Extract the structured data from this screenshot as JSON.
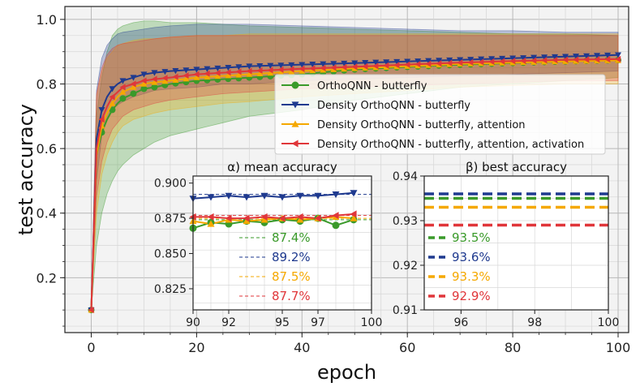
{
  "chart_data": [
    {
      "type": "line",
      "xlabel": "epoch",
      "ylabel": "test accuracy",
      "xlim": [
        -5,
        102
      ],
      "ylim": [
        0.03,
        1.04
      ],
      "x_ticks": [
        "0",
        "20",
        "40",
        "60",
        "80",
        "100"
      ],
      "y_ticks": [
        "0.2",
        "0.4",
        "0.6",
        "0.8",
        "1.0"
      ],
      "grid": true,
      "legend": "upper right",
      "series": [
        {
          "name": "OrthoQNN - butterfly",
          "color": "#3a9a2a",
          "marker": "circle",
          "x": [
            0,
            1,
            2,
            3,
            4,
            5,
            6,
            8,
            10,
            12,
            15,
            20,
            25,
            30,
            40,
            50,
            60,
            70,
            80,
            90,
            100
          ],
          "values": [
            0.1,
            0.58,
            0.65,
            0.69,
            0.72,
            0.74,
            0.755,
            0.77,
            0.785,
            0.79,
            0.8,
            0.81,
            0.815,
            0.82,
            0.83,
            0.845,
            0.853,
            0.86,
            0.865,
            0.87,
            0.874
          ],
          "band_lower": [
            0.1,
            0.3,
            0.4,
            0.46,
            0.5,
            0.53,
            0.55,
            0.58,
            0.6,
            0.62,
            0.64,
            0.66,
            0.68,
            0.7,
            0.72,
            0.75,
            0.77,
            0.79,
            0.8,
            0.81,
            0.82
          ],
          "band_upper": [
            0.1,
            0.7,
            0.82,
            0.9,
            0.95,
            0.97,
            0.98,
            0.99,
            0.995,
            0.995,
            0.99,
            0.99,
            0.985,
            0.98,
            0.975,
            0.97,
            0.965,
            0.96,
            0.955,
            0.955,
            0.95
          ]
        },
        {
          "name": "Density OrthoQNN - butterfly",
          "color": "#1f3a8f",
          "marker": "triangle-down",
          "x": [
            0,
            1,
            2,
            3,
            4,
            5,
            6,
            8,
            10,
            12,
            15,
            20,
            25,
            30,
            40,
            50,
            60,
            70,
            80,
            90,
            100
          ],
          "values": [
            0.1,
            0.63,
            0.72,
            0.76,
            0.785,
            0.8,
            0.81,
            0.82,
            0.83,
            0.835,
            0.84,
            0.845,
            0.85,
            0.855,
            0.86,
            0.865,
            0.87,
            0.875,
            0.88,
            0.885,
            0.89
          ],
          "band_lower": [
            0.1,
            0.5,
            0.64,
            0.69,
            0.72,
            0.735,
            0.745,
            0.76,
            0.77,
            0.78,
            0.785,
            0.79,
            0.8,
            0.8,
            0.81,
            0.815,
            0.82,
            0.825,
            0.83,
            0.835,
            0.84
          ],
          "band_upper": [
            0.1,
            0.78,
            0.88,
            0.92,
            0.94,
            0.955,
            0.96,
            0.965,
            0.97,
            0.975,
            0.98,
            0.985,
            0.985,
            0.985,
            0.98,
            0.975,
            0.97,
            0.965,
            0.965,
            0.96,
            0.96
          ]
        },
        {
          "name": "Density OrthoQNN - butterfly, attention",
          "color": "#f5a800",
          "marker": "triangle-up",
          "x": [
            0,
            1,
            2,
            3,
            4,
            5,
            6,
            8,
            10,
            12,
            15,
            20,
            25,
            30,
            40,
            50,
            60,
            70,
            80,
            90,
            100
          ],
          "values": [
            0.1,
            0.58,
            0.67,
            0.71,
            0.74,
            0.76,
            0.775,
            0.79,
            0.8,
            0.805,
            0.81,
            0.82,
            0.825,
            0.83,
            0.84,
            0.848,
            0.855,
            0.862,
            0.866,
            0.87,
            0.873
          ],
          "band_lower": [
            0.1,
            0.4,
            0.52,
            0.58,
            0.62,
            0.65,
            0.67,
            0.69,
            0.7,
            0.71,
            0.72,
            0.73,
            0.74,
            0.745,
            0.76,
            0.77,
            0.78,
            0.79,
            0.795,
            0.8,
            0.8
          ],
          "band_upper": [
            0.1,
            0.76,
            0.84,
            0.88,
            0.9,
            0.92,
            0.925,
            0.935,
            0.94,
            0.94,
            0.945,
            0.95,
            0.95,
            0.955,
            0.955,
            0.955,
            0.955,
            0.955,
            0.955,
            0.955,
            0.955
          ]
        },
        {
          "name": "Density OrthoQNN - butterfly, attention, activation",
          "color": "#e0363a",
          "marker": "triangle-left",
          "x": [
            0,
            1,
            2,
            3,
            4,
            5,
            6,
            8,
            10,
            12,
            15,
            20,
            25,
            30,
            40,
            50,
            60,
            70,
            80,
            90,
            100
          ],
          "values": [
            0.1,
            0.6,
            0.69,
            0.73,
            0.76,
            0.775,
            0.79,
            0.8,
            0.81,
            0.815,
            0.82,
            0.83,
            0.835,
            0.84,
            0.847,
            0.853,
            0.86,
            0.866,
            0.871,
            0.875,
            0.877
          ],
          "band_lower": [
            0.1,
            0.45,
            0.56,
            0.62,
            0.66,
            0.68,
            0.7,
            0.72,
            0.73,
            0.74,
            0.75,
            0.76,
            0.77,
            0.775,
            0.785,
            0.79,
            0.795,
            0.8,
            0.805,
            0.81,
            0.81
          ],
          "band_upper": [
            0.1,
            0.77,
            0.85,
            0.89,
            0.91,
            0.92,
            0.925,
            0.93,
            0.935,
            0.94,
            0.945,
            0.95,
            0.95,
            0.95,
            0.95,
            0.95,
            0.95,
            0.95,
            0.95,
            0.95,
            0.95
          ]
        }
      ]
    },
    {
      "type": "line",
      "title": "α) mean accuracy",
      "xlim": [
        90,
        100
      ],
      "ylim": [
        0.81,
        0.905
      ],
      "x_ticks": [
        "90",
        "92",
        "95",
        "97",
        "100"
      ],
      "y_ticks": [
        "0.825",
        "0.850",
        "0.875",
        "0.900"
      ],
      "grid": true,
      "series": [
        {
          "name": "OrthoQNN - butterfly",
          "color": "#3a9a2a",
          "mean": 0.874,
          "mean_label": "87.4%",
          "x": [
            90,
            91,
            92,
            93,
            94,
            95,
            96,
            97,
            98,
            99
          ],
          "values": [
            0.868,
            0.872,
            0.871,
            0.873,
            0.872,
            0.874,
            0.873,
            0.875,
            0.87,
            0.874
          ]
        },
        {
          "name": "Density OrthoQNN - butterfly",
          "color": "#1f3a8f",
          "mean": 0.892,
          "mean_label": "89.2%",
          "x": [
            90,
            91,
            92,
            93,
            94,
            95,
            96,
            97,
            98,
            99
          ],
          "values": [
            0.889,
            0.89,
            0.891,
            0.89,
            0.891,
            0.89,
            0.891,
            0.891,
            0.892,
            0.893
          ]
        },
        {
          "name": "Density OrthoQNN - butterfly, attention",
          "color": "#f5a800",
          "mean": 0.875,
          "mean_label": "87.5%",
          "x": [
            90,
            91,
            92,
            93,
            94,
            95,
            96,
            97,
            98,
            99
          ],
          "values": [
            0.873,
            0.871,
            0.874,
            0.873,
            0.874,
            0.875,
            0.874,
            0.875,
            0.876,
            0.875
          ]
        },
        {
          "name": "Density OrthoQNN - butterfly, attention, activation",
          "color": "#e0363a",
          "mean": 0.877,
          "mean_label": "87.7%",
          "x": [
            90,
            91,
            92,
            93,
            94,
            95,
            96,
            97,
            98,
            99
          ],
          "values": [
            0.876,
            0.876,
            0.875,
            0.875,
            0.876,
            0.875,
            0.876,
            0.875,
            0.877,
            0.878
          ]
        }
      ]
    },
    {
      "type": "line",
      "title": "β) best accuracy",
      "xlim": [
        95,
        100
      ],
      "ylim": [
        0.91,
        0.94
      ],
      "x_ticks": [
        "96",
        "98",
        "100"
      ],
      "y_ticks": [
        "0.91",
        "0.92",
        "0.93",
        "0.94"
      ],
      "grid": true,
      "series": [
        {
          "name": "OrthoQNN - butterfly",
          "color": "#3a9a2a",
          "value": 0.935,
          "label": "93.5%"
        },
        {
          "name": "Density OrthoQNN - butterfly",
          "color": "#1f3a8f",
          "value": 0.936,
          "label": "93.6%"
        },
        {
          "name": "Density OrthoQNN - butterfly, attention",
          "color": "#f5a800",
          "value": 0.933,
          "label": "93.3%"
        },
        {
          "name": "Density OrthoQNN - butterfly, attention, activation",
          "color": "#e0363a",
          "value": 0.929,
          "label": "92.9%"
        }
      ]
    }
  ]
}
